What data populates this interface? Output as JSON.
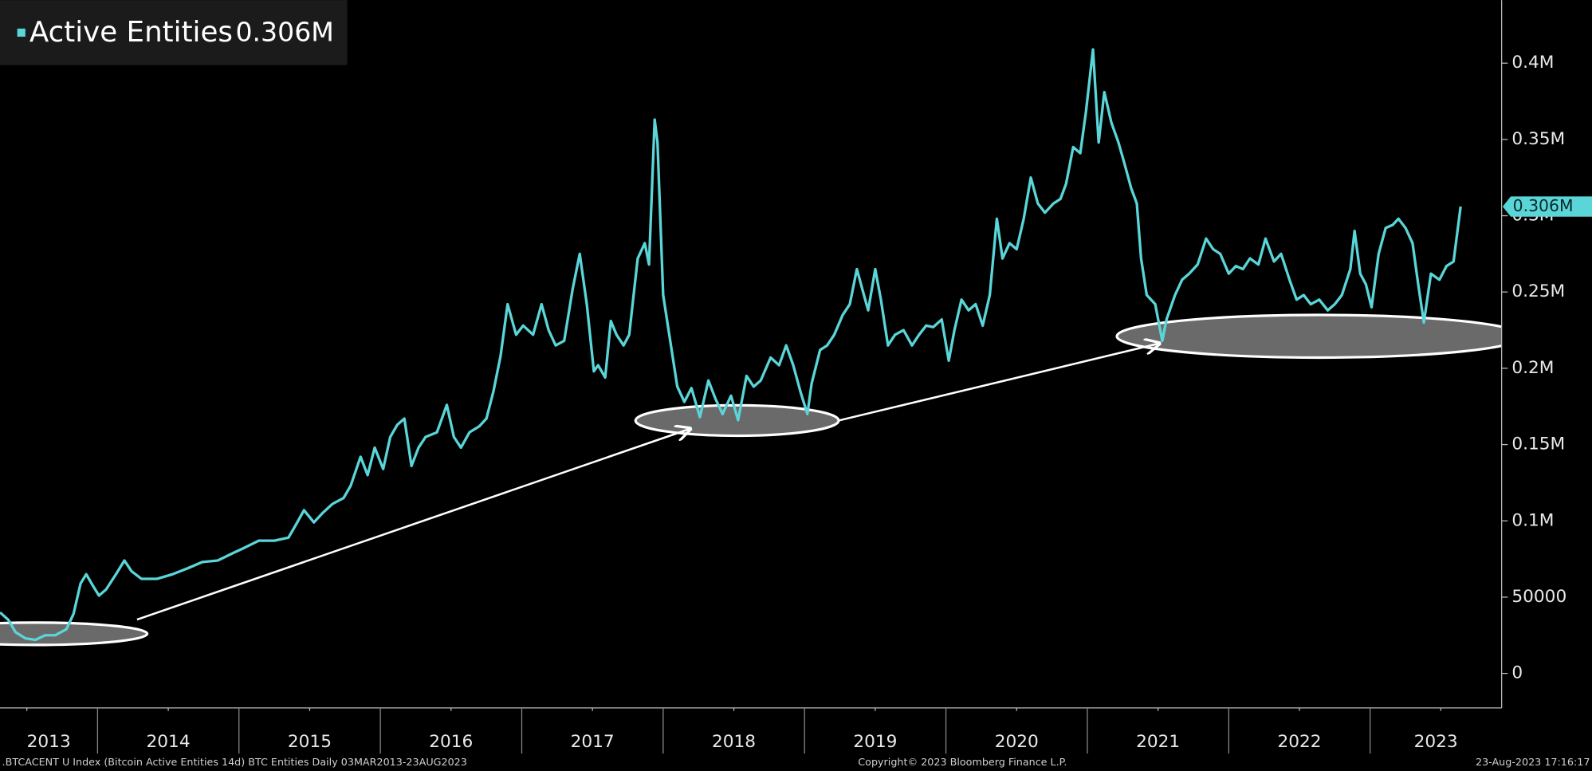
{
  "chart_data": {
    "type": "line",
    "footer_left": ".BTCACENT U Index (Bitcoin Active Entities 14d) BTC Entities  Daily 03MAR2013-23AUG2023",
    "footer_center": "Copyright© 2023 Bloomberg Finance L.P.",
    "footer_right": "23-Aug-2023 17:16:17",
    "x": [
      2013.31,
      2013.37,
      2013.42,
      2013.49,
      2013.56,
      2013.63,
      2013.7,
      2013.78,
      2013.83,
      2013.88,
      2013.92,
      2013.97,
      2014.01,
      2014.06,
      2014.13,
      2014.19,
      2014.24,
      2014.31,
      2014.42,
      2014.53,
      2014.64,
      2014.74,
      2014.85,
      2014.96,
      2015.03,
      2015.14,
      2015.25,
      2015.35,
      2015.4,
      2015.46,
      2015.53,
      2015.59,
      2015.66,
      2015.74,
      2015.79,
      2015.86,
      2015.91,
      2015.96,
      2016.02,
      2016.07,
      2016.12,
      2016.17,
      2016.22,
      2016.27,
      2016.32,
      2016.4,
      2016.47,
      2016.52,
      2016.57,
      2016.63,
      2016.7,
      2016.75,
      2016.8,
      2016.85,
      2016.9,
      2016.96,
      2017.01,
      2017.08,
      2017.14,
      2017.19,
      2017.24,
      2017.3,
      2017.36,
      2017.41,
      2017.46,
      2017.51,
      2017.54,
      2017.59,
      2017.63,
      2017.67,
      2017.72,
      2017.76,
      2017.82,
      2017.87,
      2017.9,
      2017.94,
      2017.96,
      2018.0,
      2018.05,
      2018.1,
      2018.15,
      2018.2,
      2018.26,
      2018.32,
      2018.37,
      2018.42,
      2018.48,
      2018.53,
      2018.59,
      2018.64,
      2018.69,
      2018.76,
      2018.82,
      2018.87,
      2018.92,
      2018.97,
      2019.02,
      2019.05,
      2019.11,
      2019.16,
      2019.21,
      2019.27,
      2019.32,
      2019.37,
      2019.42,
      2019.45,
      2019.5,
      2019.54,
      2019.59,
      2019.64,
      2019.7,
      2019.76,
      2019.81,
      2019.86,
      2019.91,
      2019.97,
      2020.02,
      2020.06,
      2020.11,
      2020.16,
      2020.21,
      2020.26,
      2020.31,
      2020.36,
      2020.4,
      2020.45,
      2020.5,
      2020.55,
      2020.6,
      2020.65,
      2020.7,
      2020.76,
      2020.81,
      2020.85,
      2020.9,
      2020.95,
      2020.99,
      2021.04,
      2021.08,
      2021.12,
      2021.17,
      2021.22,
      2021.26,
      2021.31,
      2021.35,
      2021.38,
      2021.42,
      2021.48,
      2021.53,
      2021.56,
      2021.62,
      2021.67,
      2021.72,
      2021.78,
      2021.84,
      2021.89,
      2021.94,
      2022.0,
      2022.05,
      2022.1,
      2022.15,
      2022.21,
      2022.26,
      2022.32,
      2022.37,
      2022.43,
      2022.48,
      2022.53,
      2022.58,
      2022.64,
      2022.7,
      2022.75,
      2022.8,
      2022.86,
      2022.89,
      2022.93,
      2022.97,
      2023.01,
      2023.06,
      2023.11,
      2023.16,
      2023.2,
      2023.25,
      2023.3,
      2023.34,
      2023.38,
      2023.43,
      2023.49,
      2023.54,
      2023.59,
      2023.64
    ],
    "series": [
      {
        "name": "Active Entities",
        "color": "#5ad5d8",
        "last_value_label": "0.306M",
        "values": [
          40000,
          35000,
          27000,
          23000,
          22000,
          25000,
          25000,
          29000,
          39000,
          59000,
          65000,
          57000,
          51000,
          55000,
          65000,
          74000,
          67000,
          62000,
          62000,
          65000,
          69000,
          73000,
          74000,
          79000,
          82000,
          87000,
          87000,
          89000,
          97000,
          107000,
          99000,
          105000,
          111000,
          115000,
          123000,
          142000,
          130000,
          148000,
          134000,
          155000,
          163000,
          167000,
          136000,
          148000,
          155000,
          158000,
          176000,
          155000,
          148000,
          158000,
          162000,
          167000,
          185000,
          208000,
          242000,
          222000,
          228000,
          222000,
          242000,
          225000,
          215000,
          218000,
          252000,
          275000,
          242000,
          198000,
          202000,
          194000,
          231000,
          222000,
          215000,
          222000,
          272000,
          282000,
          268000,
          363000,
          348000,
          248000,
          218000,
          188000,
          178000,
          187000,
          168000,
          192000,
          180000,
          170000,
          182000,
          166000,
          195000,
          188000,
          192000,
          207000,
          202000,
          215000,
          202000,
          185000,
          170000,
          190000,
          212000,
          215000,
          222000,
          235000,
          242000,
          265000,
          248000,
          238000,
          265000,
          245000,
          215000,
          222000,
          225000,
          215000,
          222000,
          228000,
          227000,
          232000,
          205000,
          225000,
          245000,
          238000,
          242000,
          228000,
          248000,
          298000,
          272000,
          282000,
          278000,
          298000,
          325000,
          308000,
          302000,
          308000,
          311000,
          321000,
          345000,
          341000,
          368000,
          409000,
          348000,
          381000,
          361000,
          348000,
          335000,
          318000,
          308000,
          272000,
          248000,
          242000,
          218000,
          232000,
          248000,
          258000,
          262000,
          268000,
          285000,
          278000,
          275000,
          262000,
          267000,
          265000,
          272000,
          268000,
          285000,
          270000,
          275000,
          258000,
          245000,
          248000,
          242000,
          245000,
          238000,
          242000,
          248000,
          265000,
          290000,
          262000,
          255000,
          240000,
          275000,
          292000,
          294000,
          298000,
          292000,
          282000,
          255000,
          230000,
          262000,
          258000,
          267000,
          270000,
          306000
        ]
      }
    ],
    "xlim": [
      2013.31,
      2023.93
    ],
    "xticks": [
      {
        "value": 2013.5,
        "label": "2013"
      },
      {
        "value": 2014.5,
        "label": "2014"
      },
      {
        "value": 2015.5,
        "label": "2015"
      },
      {
        "value": 2016.5,
        "label": "2016"
      },
      {
        "value": 2017.5,
        "label": "2017"
      },
      {
        "value": 2018.5,
        "label": "2018"
      },
      {
        "value": 2019.5,
        "label": "2019"
      },
      {
        "value": 2020.5,
        "label": "2020"
      },
      {
        "value": 2021.5,
        "label": "2021"
      },
      {
        "value": 2022.5,
        "label": "2022"
      },
      {
        "value": 2023.5,
        "label": "2023"
      }
    ],
    "ylim": [
      -22600,
      441300
    ],
    "yticks": [
      0,
      50000,
      {
        "value": 100000,
        "label": "0.1M"
      },
      {
        "value": 150000,
        "label": "0.15M"
      },
      {
        "value": 200000,
        "label": "0.2M"
      },
      {
        "value": 250000,
        "label": "0.25M"
      },
      {
        "value": 300000,
        "label": "0.3M"
      },
      {
        "value": 350000,
        "label": "0.35M"
      },
      {
        "value": 400000,
        "label": "0.4M"
      }
    ],
    "grid": false
  }
}
